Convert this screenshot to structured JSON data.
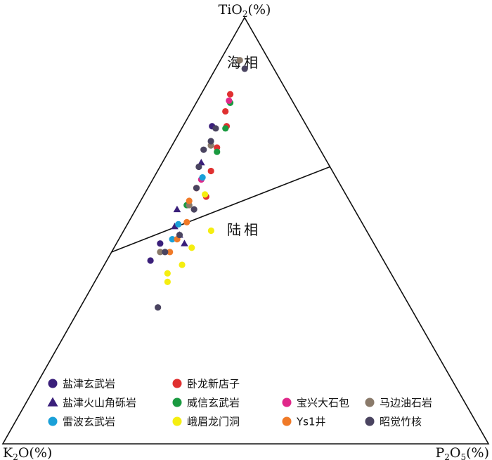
{
  "chart_data": {
    "type": "scatter",
    "subtype": "ternary",
    "axes": {
      "top": {
        "base": "TiO",
        "sub": "2",
        "tail": "(%)"
      },
      "left": {
        "base": "K",
        "sub": "2",
        "tail": "O(%)"
      },
      "right": {
        "base": "P",
        "sub": "2",
        "mid": "O",
        "sub2": "5",
        "tail": "(%)"
      }
    },
    "fields": [
      {
        "name": "海相"
      },
      {
        "name": "陆相"
      }
    ],
    "boundary_line": {
      "start": {
        "TiO2": 45,
        "K2O": 55,
        "P2O5": 0
      },
      "end": {
        "TiO2": 65,
        "K2O": 0,
        "P2O5": 35
      }
    },
    "series": [
      {
        "name": "盐津玄武岩",
        "marker": "circle",
        "color": "#3a1f7a",
        "points": [
          [
            74.5,
            19.5,
            6
          ],
          [
            43,
            48,
            9
          ],
          [
            47,
            44,
            9
          ]
        ]
      },
      {
        "name": "盐津火山角砾岩",
        "marker": "triangle",
        "color": "#3a1f7a",
        "points": [
          [
            66,
            26,
            8
          ],
          [
            55,
            36.5,
            8.5
          ],
          [
            51,
            39,
            10
          ],
          [
            49,
            39,
            12
          ],
          [
            47,
            39,
            14
          ]
        ]
      },
      {
        "name": "卧龙新店子",
        "marker": "circle",
        "color": "#e03030",
        "points": [
          [
            82,
            12,
            6
          ],
          [
            78,
            15,
            7
          ],
          [
            74.5,
            16.5,
            9
          ],
          [
            69.5,
            21,
            9.5
          ],
          [
            64,
            25,
            11
          ],
          [
            58,
            29,
            13
          ]
        ]
      },
      {
        "name": "威信玄武岩",
        "marker": "circle",
        "color": "#1a9a40",
        "points": [
          [
            80,
            13,
            7
          ],
          [
            74,
            17,
            9
          ],
          [
            68.5,
            21.5,
            10
          ],
          [
            56,
            34,
            10
          ]
        ]
      },
      {
        "name": "宝兴大石包",
        "marker": "circle",
        "color": "#e0288a",
        "points": [
          [
            80.5,
            13,
            6.5
          ],
          [
            62,
            28,
            10
          ],
          [
            60,
            30,
            10
          ]
        ]
      },
      {
        "name": "马边油石岩",
        "marker": "circle",
        "color": "#8a7a6a",
        "points": [
          [
            90,
            6,
            4
          ],
          [
            70,
            22,
            8
          ],
          [
            56,
            33.5,
            10.5
          ],
          [
            45,
            45,
            10
          ]
        ]
      },
      {
        "name": "雷波玄武岩",
        "marker": "circle",
        "color": "#1aa0d8",
        "points": [
          [
            62.5,
            27.5,
            10
          ],
          [
            51.5,
            38,
            10.5
          ],
          [
            48,
            41,
            11
          ]
        ]
      },
      {
        "name": "峨眉龙门洞",
        "marker": "circle",
        "color": "#f5ee10",
        "points": [
          [
            58.5,
            29,
            12.5
          ],
          [
            50,
            32,
            18
          ],
          [
            46,
            38,
            16
          ],
          [
            42,
            42,
            16
          ],
          [
            40,
            46,
            14
          ],
          [
            38,
            47,
            15
          ]
        ]
      },
      {
        "name": "Ys1井",
        "marker": "circle",
        "color": "#f07a28",
        "points": [
          [
            60,
            30,
            10
          ],
          [
            57,
            33,
            10
          ],
          [
            52,
            36,
            12
          ],
          [
            48,
            40,
            12
          ],
          [
            45,
            43,
            12
          ]
        ]
      },
      {
        "name": "昭觉竹核",
        "marker": "circle",
        "color": "#4a4460",
        "points": [
          [
            88,
            6,
            6
          ],
          [
            74,
            19,
            7
          ],
          [
            71,
            21.5,
            7.5
          ],
          [
            69,
            24,
            7
          ],
          [
            65,
            27,
            8
          ],
          [
            60,
            30,
            10
          ],
          [
            55,
            33,
            12
          ],
          [
            49,
            39,
            12
          ],
          [
            45,
            44,
            11
          ],
          [
            32,
            52,
            16
          ]
        ]
      }
    ]
  }
}
